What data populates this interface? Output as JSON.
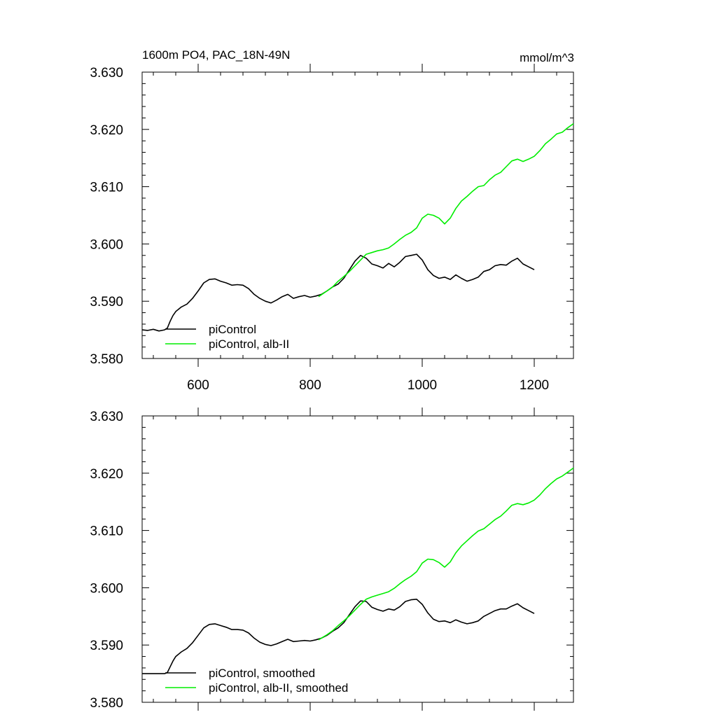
{
  "header": {
    "title": "1600m PO4, PAC_18N-49N",
    "units": "mmol/m^3"
  },
  "colors": {
    "control": "#000000",
    "experiment": "#00ee00"
  },
  "chart_data": [
    {
      "type": "line",
      "panel": "top",
      "title": "1600m PO4, PAC_18N-49N",
      "units_label": "mmol/m^3",
      "xlim": [
        500,
        1270
      ],
      "ylim": [
        3.58,
        3.63
      ],
      "xticks": [
        600,
        800,
        1000,
        1200
      ],
      "xtick_labels": [
        "600",
        "800",
        "1000",
        "1200"
      ],
      "yticks": [
        3.58,
        3.59,
        3.6,
        3.61,
        3.62,
        3.63
      ],
      "ytick_labels": [
        "3.580",
        "3.590",
        "3.600",
        "3.610",
        "3.620",
        "3.630"
      ],
      "legend_position": "bottom-left",
      "series": [
        {
          "name": "piControl",
          "color": "#000000",
          "x": [
            500,
            510,
            520,
            530,
            540,
            545,
            550,
            555,
            560,
            570,
            580,
            590,
            600,
            610,
            620,
            630,
            640,
            650,
            660,
            670,
            680,
            690,
            700,
            710,
            720,
            730,
            740,
            750,
            760,
            770,
            780,
            790,
            800,
            810,
            820,
            830,
            840,
            850,
            860,
            870,
            880,
            890,
            900,
            910,
            920,
            930,
            940,
            950,
            960,
            970,
            980,
            990,
            1000,
            1010,
            1020,
            1030,
            1040,
            1050,
            1060,
            1070,
            1080,
            1090,
            1100,
            1110,
            1120,
            1130,
            1140,
            1150,
            1160,
            1170,
            1180,
            1190,
            1200
          ],
          "y": [
            3.585,
            3.5849,
            3.5851,
            3.5848,
            3.585,
            3.5853,
            3.5865,
            3.5875,
            3.5882,
            3.589,
            3.5895,
            3.5905,
            3.5918,
            3.5932,
            3.5938,
            3.5939,
            3.5935,
            3.5932,
            3.5928,
            3.5929,
            3.5928,
            3.5922,
            3.5912,
            3.5905,
            3.59,
            3.5897,
            3.5902,
            3.5908,
            3.5912,
            3.5905,
            3.5908,
            3.591,
            3.5907,
            3.5909,
            3.5912,
            3.5918,
            3.5925,
            3.593,
            3.594,
            3.5955,
            3.597,
            3.598,
            3.5975,
            3.5965,
            3.5962,
            3.5958,
            3.5966,
            3.596,
            3.5968,
            3.5978,
            3.598,
            3.5982,
            3.5972,
            3.5955,
            3.5945,
            3.594,
            3.5942,
            3.5938,
            3.5946,
            3.594,
            3.5935,
            3.5938,
            3.5942,
            3.5952,
            3.5955,
            3.5962,
            3.5964,
            3.5963,
            3.597,
            3.5975,
            3.5965,
            3.596,
            3.5955
          ]
        },
        {
          "name": "piControl, alb-II",
          "color": "#00ee00",
          "x": [
            815,
            830,
            840,
            850,
            860,
            870,
            880,
            890,
            900,
            910,
            920,
            930,
            940,
            950,
            960,
            970,
            980,
            990,
            1000,
            1010,
            1020,
            1030,
            1040,
            1050,
            1060,
            1070,
            1080,
            1090,
            1100,
            1110,
            1120,
            1130,
            1140,
            1150,
            1160,
            1170,
            1180,
            1190,
            1200,
            1210,
            1220,
            1230,
            1240,
            1250,
            1260,
            1270
          ],
          "y": [
            3.5908,
            3.5918,
            3.5925,
            3.5935,
            3.5943,
            3.5952,
            3.5962,
            3.5972,
            3.5982,
            3.5985,
            3.5988,
            3.599,
            3.5993,
            3.6,
            3.6008,
            3.6015,
            3.602,
            3.6028,
            3.6045,
            3.6052,
            3.605,
            3.6045,
            3.6035,
            3.6045,
            3.6062,
            3.6075,
            3.6083,
            3.6092,
            3.61,
            3.6102,
            3.6112,
            3.612,
            3.6125,
            3.6135,
            3.6145,
            3.6148,
            3.6144,
            3.6148,
            3.6153,
            3.6163,
            3.6175,
            3.6183,
            3.6192,
            3.6195,
            3.6203,
            3.621
          ]
        }
      ]
    },
    {
      "type": "line",
      "panel": "bottom",
      "xlim": [
        500,
        1270
      ],
      "ylim": [
        3.58,
        3.63
      ],
      "xticks": [
        600,
        800,
        1000,
        1200
      ],
      "yticks": [
        3.58,
        3.59,
        3.6,
        3.61,
        3.62,
        3.63
      ],
      "ytick_labels": [
        "3.580",
        "3.590",
        "3.600",
        "3.610",
        "3.620",
        "3.630"
      ],
      "legend_position": "bottom-left",
      "series": [
        {
          "name": "piControl, smoothed",
          "color": "#000000",
          "x": [
            500,
            510,
            520,
            530,
            540,
            545,
            550,
            555,
            560,
            570,
            580,
            590,
            600,
            610,
            620,
            630,
            640,
            650,
            660,
            670,
            680,
            690,
            700,
            710,
            720,
            730,
            740,
            750,
            760,
            770,
            780,
            790,
            800,
            810,
            820,
            830,
            840,
            850,
            860,
            870,
            880,
            890,
            900,
            910,
            920,
            930,
            940,
            950,
            960,
            970,
            980,
            990,
            1000,
            1010,
            1020,
            1030,
            1040,
            1050,
            1060,
            1070,
            1080,
            1090,
            1100,
            1110,
            1120,
            1130,
            1140,
            1150,
            1160,
            1170,
            1180,
            1190,
            1200
          ],
          "y": [
            3.585,
            3.585,
            3.585,
            3.585,
            3.585,
            3.5852,
            3.5862,
            3.5872,
            3.588,
            3.5888,
            3.5894,
            3.5904,
            3.5917,
            3.593,
            3.5936,
            3.5937,
            3.5934,
            3.5931,
            3.5927,
            3.5927,
            3.5926,
            3.5921,
            3.5912,
            3.5905,
            3.5901,
            3.5899,
            3.5902,
            3.5906,
            3.591,
            3.5906,
            3.5907,
            3.5908,
            3.5907,
            3.5909,
            3.5912,
            3.5917,
            3.5924,
            3.593,
            3.5939,
            3.5953,
            3.5967,
            3.5977,
            3.5976,
            3.5966,
            3.5962,
            3.5959,
            3.5963,
            3.5961,
            3.5967,
            3.5976,
            3.5979,
            3.598,
            3.5971,
            3.5956,
            3.5945,
            3.5941,
            3.5942,
            3.5939,
            3.5944,
            3.594,
            3.5937,
            3.5939,
            3.5942,
            3.595,
            3.5955,
            3.596,
            3.5963,
            3.5963,
            3.5968,
            3.5972,
            3.5965,
            3.596,
            3.5955
          ]
        },
        {
          "name": "piControl, alb-II, smoothed",
          "color": "#00ee00",
          "x": [
            815,
            830,
            840,
            850,
            860,
            870,
            880,
            890,
            900,
            910,
            920,
            930,
            940,
            950,
            960,
            970,
            980,
            990,
            1000,
            1010,
            1020,
            1030,
            1040,
            1050,
            1060,
            1070,
            1080,
            1090,
            1100,
            1110,
            1120,
            1130,
            1140,
            1150,
            1160,
            1170,
            1180,
            1190,
            1200,
            1210,
            1220,
            1230,
            1240,
            1250,
            1260,
            1270
          ],
          "y": [
            3.5909,
            3.5918,
            3.5925,
            3.5934,
            3.5942,
            3.5951,
            3.5961,
            3.5971,
            3.598,
            3.5984,
            3.5987,
            3.599,
            3.5993,
            3.5999,
            3.6007,
            3.6014,
            3.602,
            3.6028,
            3.6043,
            3.605,
            3.6049,
            3.6044,
            3.6036,
            3.6045,
            3.6061,
            3.6073,
            3.6082,
            3.6091,
            3.6099,
            3.6103,
            3.6111,
            3.6119,
            3.6125,
            3.6134,
            3.6144,
            3.6147,
            3.6145,
            3.6148,
            3.6153,
            3.6162,
            3.6173,
            3.6182,
            3.619,
            3.6195,
            3.6202,
            3.6209
          ]
        }
      ]
    }
  ]
}
